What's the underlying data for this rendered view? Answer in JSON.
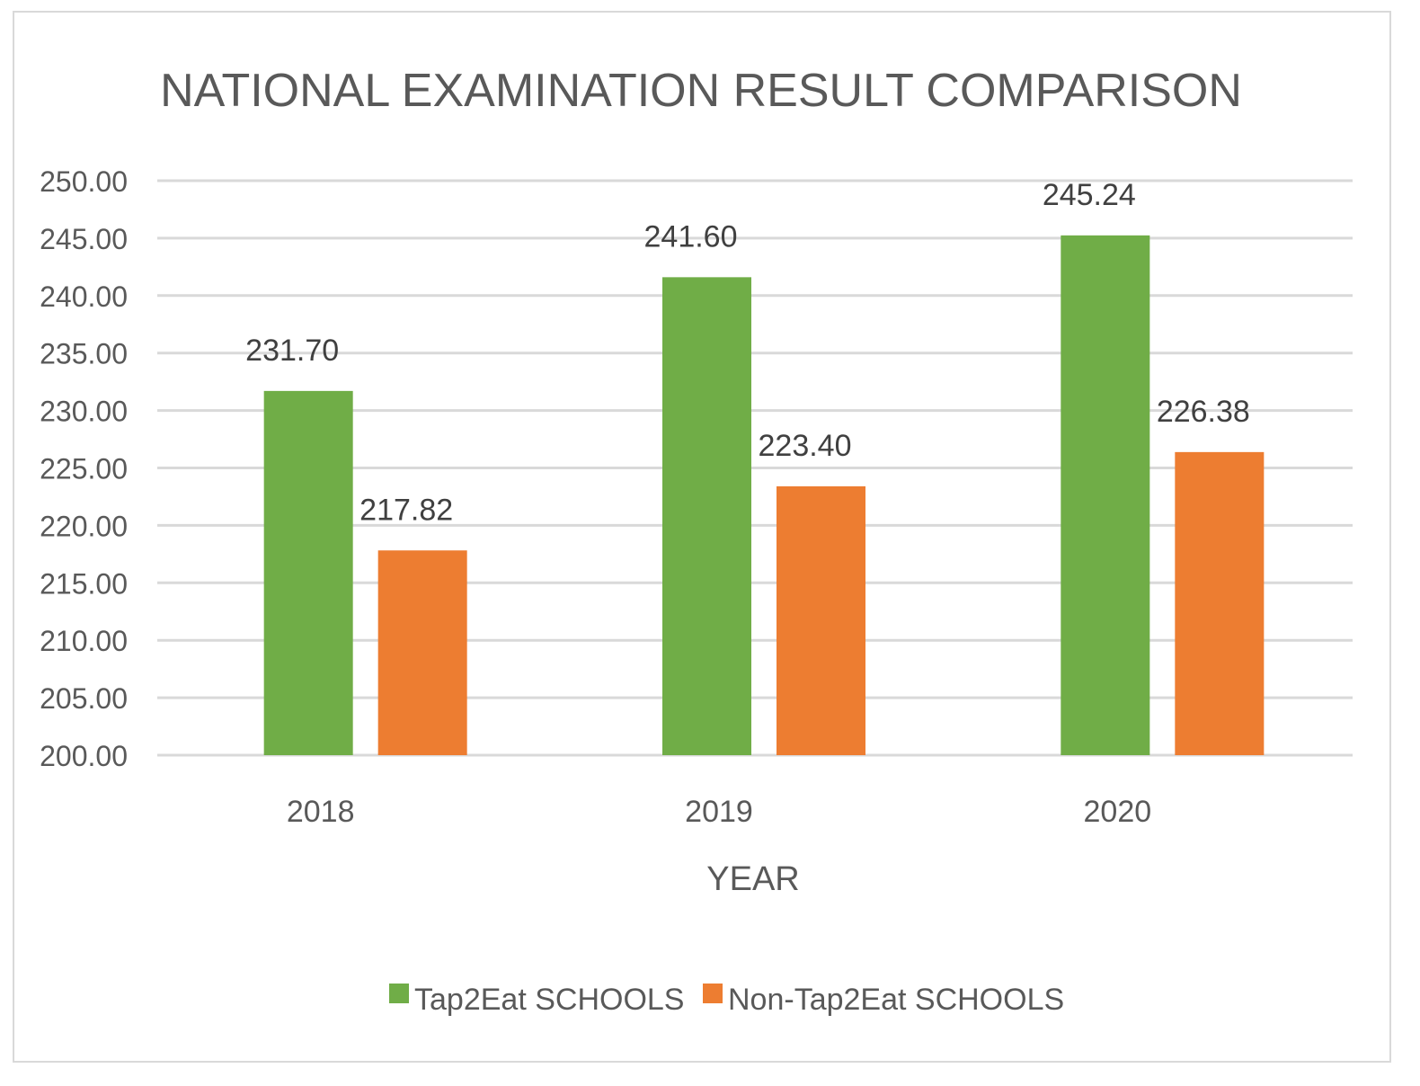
{
  "chart_data": {
    "type": "bar",
    "title": "NATIONAL EXAMINATION RESULT COMPARISON",
    "xlabel": "YEAR",
    "ylabel": "",
    "categories": [
      "2018",
      "2019",
      "2020"
    ],
    "series": [
      {
        "name": "Tap2Eat SCHOOLS",
        "values": [
          231.7,
          241.6,
          245.24
        ],
        "labels": [
          "231.70",
          "241.60",
          "245.24"
        ],
        "color": "#70ad47"
      },
      {
        "name": "Non-Tap2Eat SCHOOLS",
        "values": [
          217.82,
          223.4,
          226.38
        ],
        "labels": [
          "217.82",
          "223.40",
          "226.38"
        ],
        "color": "#ed7d31"
      }
    ],
    "ylim": [
      200,
      250
    ],
    "yticks": [
      "200.00",
      "205.00",
      "210.00",
      "215.00",
      "220.00",
      "225.00",
      "230.00",
      "235.00",
      "240.00",
      "245.00",
      "250.00"
    ],
    "grid": true,
    "legend": "bottom"
  }
}
